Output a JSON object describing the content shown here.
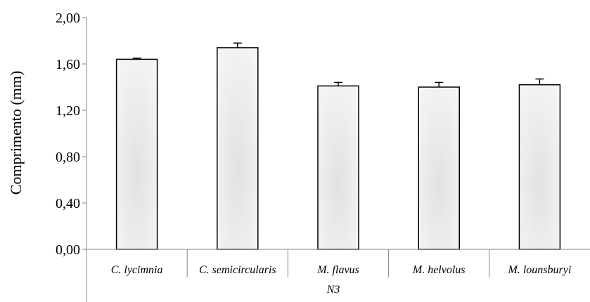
{
  "chart_data": {
    "type": "bar",
    "title": "",
    "xlabel": "",
    "ylabel": "Comprimento (mm)",
    "ylim": [
      0,
      2.0
    ],
    "y_ticks": [
      "0,00",
      "0,40",
      "0,80",
      "1,20",
      "1,60",
      "2,00"
    ],
    "categories": [
      "C. lycimnia",
      "C. semicircularis",
      "M. flavus",
      "M. helvolus",
      "M. lounsburyi"
    ],
    "group_label": "N3",
    "values": [
      1.64,
      1.74,
      1.41,
      1.4,
      1.42
    ],
    "error_bars": [
      0.01,
      0.04,
      0.03,
      0.04,
      0.05
    ],
    "grid": false,
    "legend": "none",
    "bar_fill_center": "#e2e2e2",
    "bar_fill_edge": "#f6f6f6",
    "bar_stroke": "#000000"
  }
}
